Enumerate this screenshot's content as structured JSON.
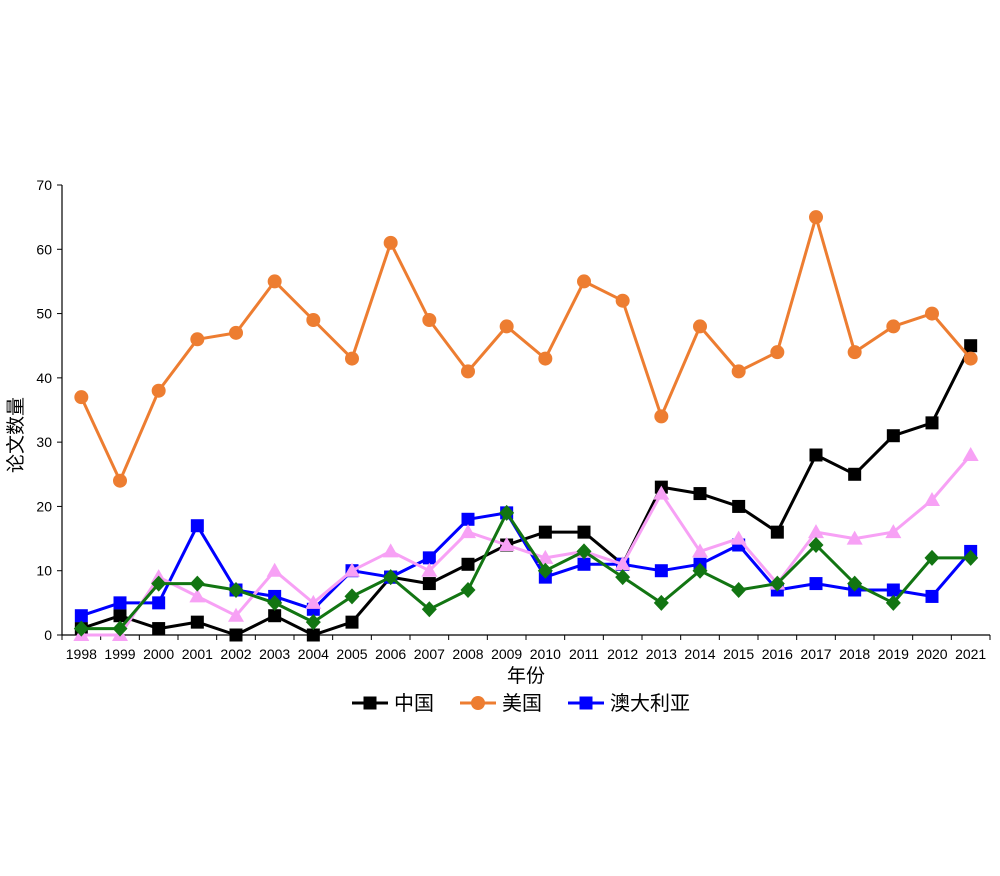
{
  "chart_data": {
    "type": "line",
    "xlabel": "年份",
    "ylabel": "论文数量",
    "ylim": [
      0,
      70
    ],
    "yticks": [
      0,
      10,
      20,
      30,
      40,
      50,
      60,
      70
    ],
    "grid": false,
    "legend_placement": "bottom",
    "x": [
      "1998",
      "1999",
      "2000",
      "2001",
      "2002",
      "2003",
      "2004",
      "2005",
      "2006",
      "2007",
      "2008",
      "2009",
      "2010",
      "2011",
      "2012",
      "2013",
      "2014",
      "2015",
      "2016",
      "2017",
      "2018",
      "2019",
      "2020",
      "2021"
    ],
    "series": [
      {
        "name": "中国",
        "color": "#000000",
        "marker": "square",
        "in_legend": true,
        "values": [
          1,
          3,
          1,
          2,
          0,
          3,
          0,
          2,
          9,
          8,
          11,
          14,
          16,
          16,
          11,
          23,
          22,
          20,
          16,
          28,
          25,
          31,
          33,
          45
        ]
      },
      {
        "name": "美国",
        "color": "#ED7D31",
        "marker": "circle",
        "in_legend": true,
        "values": [
          37,
          24,
          38,
          46,
          47,
          55,
          49,
          43,
          61,
          49,
          41,
          48,
          43,
          55,
          52,
          34,
          48,
          41,
          44,
          65,
          44,
          48,
          50,
          43
        ]
      },
      {
        "name": "澳大利亚",
        "color": "#0000FF",
        "marker": "square",
        "in_legend": true,
        "values": [
          3,
          5,
          5,
          17,
          7,
          6,
          4,
          10,
          9,
          12,
          18,
          19,
          9,
          11,
          11,
          10,
          11,
          14,
          7,
          8,
          7,
          7,
          6,
          13
        ]
      },
      {
        "color": "#F7A1F5",
        "marker": "triangle",
        "in_legend": false,
        "values": [
          0,
          0,
          9,
          6,
          3,
          10,
          5,
          10,
          13,
          10,
          16,
          14,
          12,
          13,
          11,
          22,
          13,
          15,
          8,
          16,
          15,
          16,
          21,
          28
        ]
      },
      {
        "color": "#127512",
        "marker": "diamond",
        "in_legend": false,
        "values": [
          1,
          1,
          8,
          8,
          7,
          5,
          2,
          6,
          9,
          4,
          7,
          19,
          10,
          13,
          9,
          5,
          10,
          7,
          8,
          14,
          8,
          5,
          12,
          12
        ]
      }
    ]
  }
}
